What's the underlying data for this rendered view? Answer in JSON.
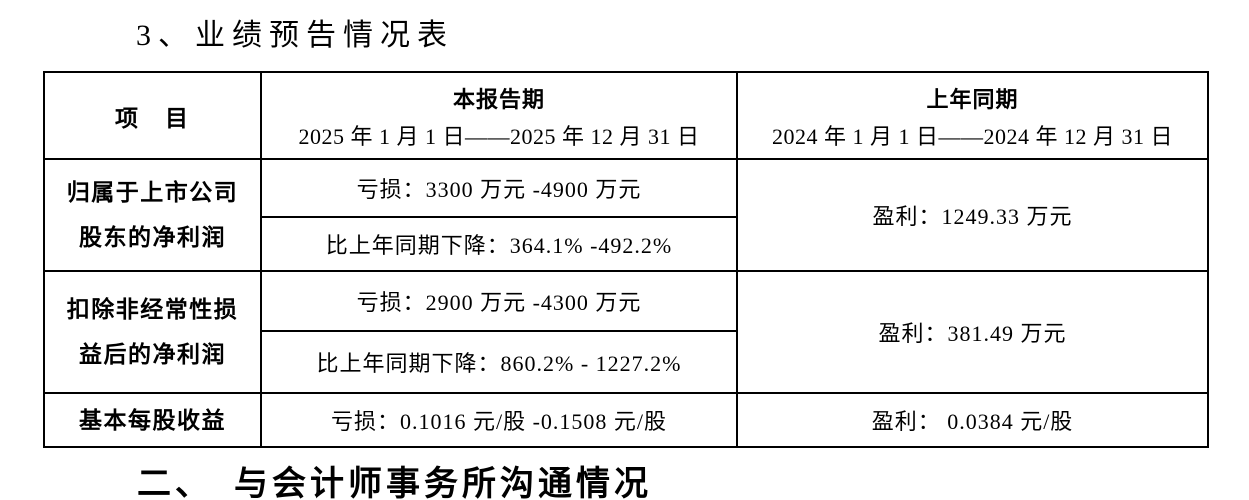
{
  "page": {
    "section_title": "3、业绩预告情况表",
    "next_section_title": "二、　与会计师事务所沟通情况"
  },
  "table": {
    "header": {
      "item_label": "项　目",
      "current_period": {
        "title": "本报告期",
        "range": "2025 年 1 月 1 日——2025 年 12 月 31 日"
      },
      "prior_period": {
        "title": "上年同期",
        "range": "2024 年 1 月 1 日——2024 年 12 月 31 日"
      }
    },
    "rows": [
      {
        "item": "归属于上市公司\n股东的净利润",
        "current_value": "亏损：3300 万元 -4900 万元",
        "current_change": "比上年同期下降：364.1% -492.2%",
        "prior_value": "盈利：1249.33 万元"
      },
      {
        "item": "扣除非经常性损\n益后的净利润",
        "current_value": "亏损：2900 万元 -4300 万元",
        "current_change": "比上年同期下降：860.2% - 1227.2%",
        "prior_value": "盈利：381.49 万元"
      },
      {
        "item": "基本每股收益",
        "current_value": "亏损：0.1016 元/股 -0.1508 元/股",
        "prior_value": "盈利： 0.0384 元/股"
      }
    ]
  },
  "colors": {
    "text": "#000000",
    "border": "#000000",
    "background": "#ffffff"
  }
}
